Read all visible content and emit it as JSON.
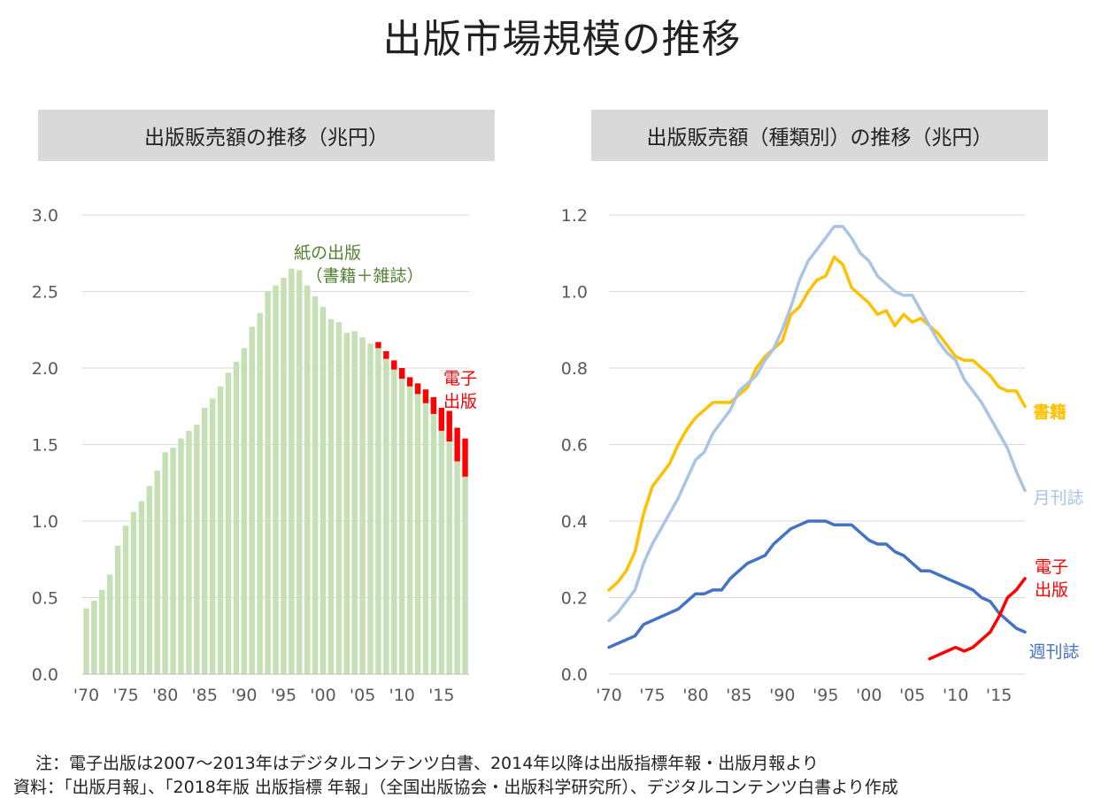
{
  "page": {
    "title": "出版市場規模の推移",
    "notes": [
      "注：電子出版は2007～2013年はデジタルコンテンツ白書、2014年以降は出版指標年報・出版月報より",
      "資料：「出版月報」、「2018年版 出版指標 年報」（全国出版協会・出版科学研究所）、デジタルコンテンツ白書より作成"
    ]
  },
  "colors": {
    "paper_bar": "#c5e0b4",
    "digital_bar": "#ff0000",
    "books": "#ffc000",
    "monthly": "#a9c4e4",
    "weekly": "#4472c4",
    "digital_line": "#ff0000",
    "paper_label": "#538135",
    "grid": "#d9d9d9",
    "tick_text": "#595959"
  },
  "chart_data": [
    {
      "type": "bar",
      "stacked": true,
      "title": "出版販売額の推移（兆円）",
      "x_years": [
        1970,
        1971,
        1972,
        1973,
        1974,
        1975,
        1976,
        1977,
        1978,
        1979,
        1980,
        1981,
        1982,
        1983,
        1984,
        1985,
        1986,
        1987,
        1988,
        1989,
        1990,
        1991,
        1992,
        1993,
        1994,
        1995,
        1996,
        1997,
        1998,
        1999,
        2000,
        2001,
        2002,
        2003,
        2004,
        2005,
        2006,
        2007,
        2008,
        2009,
        2010,
        2011,
        2012,
        2013,
        2014,
        2015,
        2016,
        2017,
        2018
      ],
      "xtick_labels": [
        "'70",
        "'75",
        "'80",
        "'85",
        "'90",
        "'95",
        "'00",
        "'05",
        "'10",
        "'15"
      ],
      "ylim": [
        0,
        3.0
      ],
      "yticks": [
        "0.0",
        "0.5",
        "1.0",
        "1.5",
        "2.0",
        "2.5",
        "3.0"
      ],
      "grid": true,
      "series": [
        {
          "name": "紙の出版（書籍＋雑誌）",
          "label_lines": [
            "紙の出版",
            "（書籍＋雑誌）"
          ],
          "values": [
            0.43,
            0.48,
            0.55,
            0.65,
            0.84,
            0.97,
            1.06,
            1.13,
            1.23,
            1.33,
            1.45,
            1.48,
            1.54,
            1.59,
            1.63,
            1.74,
            1.8,
            1.88,
            1.97,
            2.04,
            2.13,
            2.27,
            2.36,
            2.5,
            2.54,
            2.59,
            2.65,
            2.64,
            2.54,
            2.47,
            2.4,
            2.32,
            2.3,
            2.23,
            2.24,
            2.2,
            2.16,
            2.13,
            2.06,
            1.99,
            1.93,
            1.88,
            1.83,
            1.77,
            1.7,
            1.59,
            1.52,
            1.39,
            1.29
          ]
        },
        {
          "name": "電子出版",
          "label_lines": [
            "電子",
            "出版"
          ],
          "values": [
            0,
            0,
            0,
            0,
            0,
            0,
            0,
            0,
            0,
            0,
            0,
            0,
            0,
            0,
            0,
            0,
            0,
            0,
            0,
            0,
            0,
            0,
            0,
            0,
            0,
            0,
            0,
            0,
            0,
            0,
            0,
            0,
            0,
            0,
            0,
            0,
            0,
            0.04,
            0.05,
            0.06,
            0.07,
            0.06,
            0.07,
            0.09,
            0.11,
            0.15,
            0.2,
            0.22,
            0.25
          ]
        }
      ]
    },
    {
      "type": "line",
      "title": "出版販売額（種類別）の推移（兆円）",
      "x_years": [
        1970,
        1971,
        1972,
        1973,
        1974,
        1975,
        1976,
        1977,
        1978,
        1979,
        1980,
        1981,
        1982,
        1983,
        1984,
        1985,
        1986,
        1987,
        1988,
        1989,
        1990,
        1991,
        1992,
        1993,
        1994,
        1995,
        1996,
        1997,
        1998,
        1999,
        2000,
        2001,
        2002,
        2003,
        2004,
        2005,
        2006,
        2007,
        2008,
        2009,
        2010,
        2011,
        2012,
        2013,
        2014,
        2015,
        2016,
        2017,
        2018
      ],
      "xtick_labels": [
        "'70",
        "'75",
        "'80",
        "'85",
        "'90",
        "'95",
        "'00",
        "'05",
        "'10",
        "'15"
      ],
      "ylim": [
        0,
        1.2
      ],
      "yticks": [
        "0.0",
        "0.2",
        "0.4",
        "0.6",
        "0.8",
        "1.0",
        "1.2"
      ],
      "grid": true,
      "series": [
        {
          "name": "書籍",
          "label_lines": [
            "書籍"
          ],
          "color_key": "books",
          "values": [
            0.22,
            0.24,
            0.27,
            0.32,
            0.42,
            0.49,
            0.52,
            0.55,
            0.6,
            0.64,
            0.67,
            0.69,
            0.71,
            0.71,
            0.71,
            0.73,
            0.75,
            0.8,
            0.83,
            0.85,
            0.87,
            0.94,
            0.96,
            1.0,
            1.03,
            1.04,
            1.09,
            1.07,
            1.01,
            0.99,
            0.97,
            0.94,
            0.95,
            0.91,
            0.94,
            0.92,
            0.93,
            0.91,
            0.89,
            0.86,
            0.83,
            0.82,
            0.82,
            0.8,
            0.78,
            0.75,
            0.74,
            0.74,
            0.7
          ]
        },
        {
          "name": "月刊誌",
          "label_lines": [
            "月刊誌"
          ],
          "color_key": "monthly",
          "values": [
            0.14,
            0.16,
            0.19,
            0.22,
            0.29,
            0.34,
            0.38,
            0.42,
            0.46,
            0.51,
            0.56,
            0.58,
            0.63,
            0.66,
            0.69,
            0.74,
            0.76,
            0.78,
            0.82,
            0.85,
            0.9,
            0.96,
            1.03,
            1.08,
            1.11,
            1.14,
            1.17,
            1.17,
            1.14,
            1.1,
            1.08,
            1.04,
            1.02,
            1.0,
            0.99,
            0.99,
            0.95,
            0.91,
            0.87,
            0.84,
            0.82,
            0.77,
            0.74,
            0.71,
            0.67,
            0.63,
            0.59,
            0.53,
            0.48
          ]
        },
        {
          "name": "週刊誌",
          "label_lines": [
            "週刊誌"
          ],
          "color_key": "weekly",
          "values": [
            0.07,
            0.08,
            0.09,
            0.1,
            0.13,
            0.14,
            0.15,
            0.16,
            0.17,
            0.19,
            0.21,
            0.21,
            0.22,
            0.22,
            0.25,
            0.27,
            0.29,
            0.3,
            0.31,
            0.34,
            0.36,
            0.38,
            0.39,
            0.4,
            0.4,
            0.4,
            0.39,
            0.39,
            0.39,
            0.37,
            0.35,
            0.34,
            0.34,
            0.32,
            0.31,
            0.29,
            0.27,
            0.27,
            0.26,
            0.25,
            0.24,
            0.23,
            0.22,
            0.2,
            0.19,
            0.16,
            0.14,
            0.12,
            0.11
          ]
        },
        {
          "name": "電子出版",
          "label_lines": [
            "電子",
            "出版"
          ],
          "color_key": "digital_line",
          "values": [
            null,
            null,
            null,
            null,
            null,
            null,
            null,
            null,
            null,
            null,
            null,
            null,
            null,
            null,
            null,
            null,
            null,
            null,
            null,
            null,
            null,
            null,
            null,
            null,
            null,
            null,
            null,
            null,
            null,
            null,
            null,
            null,
            null,
            null,
            null,
            null,
            null,
            0.04,
            0.05,
            0.06,
            0.07,
            0.06,
            0.07,
            0.09,
            0.11,
            0.15,
            0.2,
            0.22,
            0.25
          ]
        }
      ]
    }
  ]
}
